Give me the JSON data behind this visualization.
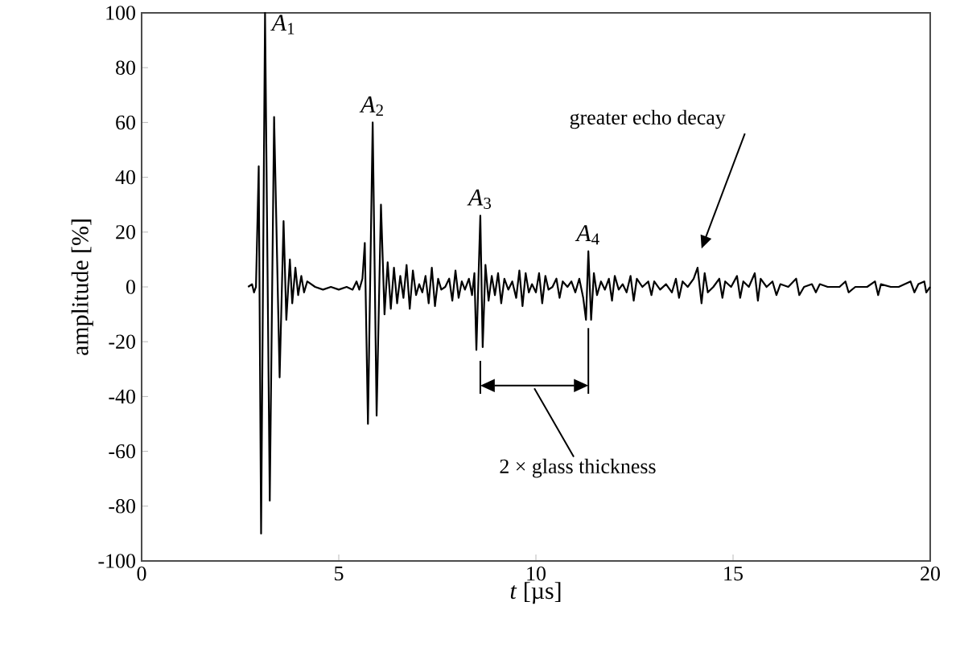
{
  "chart_data": {
    "type": "line",
    "xlabel": "*t* [µs]",
    "ylabel": "amplitude [%]",
    "xlim": [
      0,
      20
    ],
    "ylim": [
      -100,
      100
    ],
    "xticks": [
      0,
      5,
      10,
      15,
      20
    ],
    "yticks": [
      -100,
      -80,
      -60,
      -40,
      -20,
      0,
      20,
      40,
      60,
      80,
      100
    ],
    "grid": false,
    "marker": "none",
    "line_style": "solid",
    "series": [
      {
        "color": "#000000",
        "x": [
          2.7,
          2.8,
          2.85,
          2.9,
          2.97,
          3.03,
          3.13,
          3.25,
          3.36,
          3.5,
          3.6,
          3.67,
          3.76,
          3.82,
          3.9,
          3.97,
          4.05,
          4.12,
          4.2,
          4.4,
          4.6,
          4.8,
          5.0,
          5.2,
          5.35,
          5.45,
          5.52,
          5.6,
          5.66,
          5.74,
          5.86,
          5.96,
          6.07,
          6.16,
          6.24,
          6.32,
          6.4,
          6.48,
          6.56,
          6.64,
          6.72,
          6.8,
          6.88,
          6.96,
          7.04,
          7.12,
          7.2,
          7.28,
          7.36,
          7.44,
          7.52,
          7.6,
          7.7,
          7.8,
          7.88,
          7.96,
          8.04,
          8.12,
          8.2,
          8.3,
          8.38,
          8.44,
          8.49,
          8.59,
          8.65,
          8.72,
          8.8,
          8.88,
          8.96,
          9.04,
          9.12,
          9.2,
          9.3,
          9.4,
          9.5,
          9.58,
          9.66,
          9.74,
          9.82,
          9.9,
          10.0,
          10.08,
          10.16,
          10.24,
          10.32,
          10.42,
          10.52,
          10.6,
          10.68,
          10.8,
          10.9,
          11.0,
          11.1,
          11.2,
          11.27,
          11.33,
          11.4,
          11.47,
          11.55,
          11.65,
          11.75,
          11.85,
          11.93,
          12.0,
          12.1,
          12.2,
          12.3,
          12.4,
          12.48,
          12.56,
          12.7,
          12.85,
          12.93,
          13.0,
          13.15,
          13.3,
          13.45,
          13.55,
          13.63,
          13.72,
          13.85,
          14.0,
          14.1,
          14.2,
          14.28,
          14.36,
          14.5,
          14.65,
          14.73,
          14.8,
          14.95,
          15.1,
          15.18,
          15.26,
          15.4,
          15.55,
          15.63,
          15.7,
          15.85,
          16.0,
          16.1,
          16.2,
          16.4,
          16.6,
          16.68,
          16.8,
          17.0,
          17.1,
          17.2,
          17.4,
          17.7,
          17.85,
          17.93,
          18.1,
          18.4,
          18.6,
          18.68,
          18.75,
          19.0,
          19.2,
          19.5,
          19.6,
          19.7,
          19.85,
          19.9,
          20.0
        ],
        "values": [
          0,
          1,
          -2,
          0,
          44,
          -90,
          100,
          -78,
          62,
          -33,
          24,
          -12,
          10,
          -6,
          7,
          -3,
          4,
          -2,
          2,
          0,
          -1,
          0,
          -1,
          0,
          -1,
          2,
          -1,
          3,
          16,
          -50,
          60,
          -47,
          30,
          -10,
          9,
          -8,
          7,
          -6,
          4,
          -4,
          8,
          -8,
          6,
          -3,
          1,
          -2,
          4,
          -6,
          7,
          -7,
          3,
          -1,
          0,
          3,
          -5,
          6,
          -4,
          2,
          -1,
          3,
          -3,
          5,
          -23,
          26,
          -22,
          8,
          -5,
          4,
          -3,
          5,
          -6,
          3,
          -1,
          2,
          -4,
          6,
          -7,
          5,
          -2,
          1,
          -2,
          5,
          -6,
          4,
          -1,
          0,
          3,
          -4,
          2,
          0,
          2,
          -2,
          3,
          -4,
          -12,
          13,
          -12,
          5,
          -3,
          2,
          -1,
          3,
          -5,
          4,
          -1,
          1,
          -2,
          4,
          -5,
          3,
          0,
          2,
          -3,
          2,
          -1,
          1,
          -2,
          3,
          -4,
          2,
          0,
          3,
          7,
          -6,
          5,
          -2,
          0,
          3,
          -4,
          2,
          0,
          4,
          -4,
          2,
          0,
          5,
          -5,
          3,
          0,
          2,
          -3,
          1,
          0,
          3,
          -3,
          0,
          1,
          -2,
          1,
          0,
          0,
          2,
          -2,
          0,
          0,
          2,
          -3,
          1,
          0,
          0,
          2,
          -2,
          1,
          2,
          -2,
          0
        ]
      }
    ],
    "annotations": [
      {
        "text": "*A*$_{1}$",
        "x": 3.13,
        "y": 100
      },
      {
        "text": "*A*$_{2}$",
        "x": 5.86,
        "y": 60
      },
      {
        "text": "*A*$_{3}$",
        "x": 8.59,
        "y": 26
      },
      {
        "text": "*A*$_{4}$",
        "x": 11.33,
        "y": 13
      },
      "2 × glass thickness",
      "greater echo decay"
    ]
  }
}
